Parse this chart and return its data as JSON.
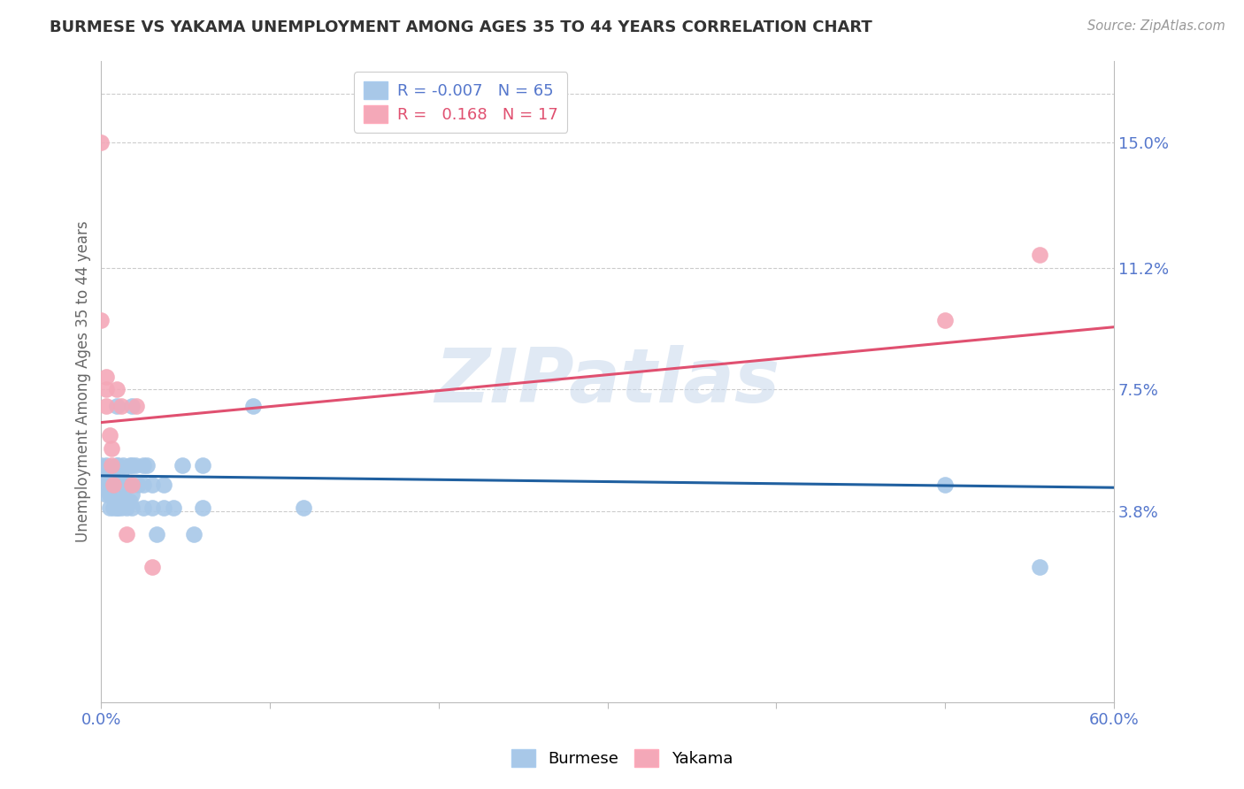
{
  "title": "BURMESE VS YAKAMA UNEMPLOYMENT AMONG AGES 35 TO 44 YEARS CORRELATION CHART",
  "source": "Source: ZipAtlas.com",
  "ylabel": "Unemployment Among Ages 35 to 44 years",
  "xlim": [
    0.0,
    0.6
  ],
  "ylim": [
    -0.02,
    0.175
  ],
  "y_tick_vals_right": [
    0.15,
    0.112,
    0.075,
    0.038
  ],
  "y_tick_labels_right": [
    "15.0%",
    "11.2%",
    "7.5%",
    "3.8%"
  ],
  "burmese_color": "#A8C8E8",
  "yakama_color": "#F4A8B8",
  "burmese_line_color": "#2060A0",
  "yakama_line_color": "#E05070",
  "burmese_R": "-0.007",
  "burmese_N": "65",
  "yakama_R": "0.168",
  "yakama_N": "17",
  "watermark": "ZIPatlas",
  "burmese_scatter": [
    [
      0.0,
      0.05
    ],
    [
      0.0,
      0.046
    ],
    [
      0.0,
      0.052
    ],
    [
      0.0,
      0.048
    ],
    [
      0.003,
      0.05
    ],
    [
      0.003,
      0.048
    ],
    [
      0.003,
      0.043
    ],
    [
      0.003,
      0.052
    ],
    [
      0.005,
      0.05
    ],
    [
      0.005,
      0.046
    ],
    [
      0.005,
      0.043
    ],
    [
      0.005,
      0.043
    ],
    [
      0.005,
      0.039
    ],
    [
      0.006,
      0.046
    ],
    [
      0.007,
      0.039
    ],
    [
      0.007,
      0.043
    ],
    [
      0.007,
      0.043
    ],
    [
      0.007,
      0.048
    ],
    [
      0.009,
      0.039
    ],
    [
      0.009,
      0.041
    ],
    [
      0.009,
      0.046
    ],
    [
      0.009,
      0.052
    ],
    [
      0.009,
      0.07
    ],
    [
      0.01,
      0.039
    ],
    [
      0.01,
      0.041
    ],
    [
      0.01,
      0.046
    ],
    [
      0.01,
      0.052
    ],
    [
      0.012,
      0.039
    ],
    [
      0.012,
      0.043
    ],
    [
      0.012,
      0.046
    ],
    [
      0.012,
      0.05
    ],
    [
      0.013,
      0.043
    ],
    [
      0.013,
      0.046
    ],
    [
      0.013,
      0.046
    ],
    [
      0.013,
      0.052
    ],
    [
      0.015,
      0.039
    ],
    [
      0.015,
      0.041
    ],
    [
      0.015,
      0.046
    ],
    [
      0.017,
      0.041
    ],
    [
      0.017,
      0.046
    ],
    [
      0.017,
      0.052
    ],
    [
      0.018,
      0.039
    ],
    [
      0.018,
      0.043
    ],
    [
      0.018,
      0.052
    ],
    [
      0.018,
      0.07
    ],
    [
      0.02,
      0.052
    ],
    [
      0.022,
      0.046
    ],
    [
      0.025,
      0.039
    ],
    [
      0.025,
      0.046
    ],
    [
      0.025,
      0.052
    ],
    [
      0.027,
      0.052
    ],
    [
      0.03,
      0.039
    ],
    [
      0.03,
      0.046
    ],
    [
      0.033,
      0.031
    ],
    [
      0.037,
      0.046
    ],
    [
      0.037,
      0.039
    ],
    [
      0.043,
      0.039
    ],
    [
      0.048,
      0.052
    ],
    [
      0.055,
      0.031
    ],
    [
      0.06,
      0.052
    ],
    [
      0.06,
      0.039
    ],
    [
      0.09,
      0.07
    ],
    [
      0.12,
      0.039
    ],
    [
      0.5,
      0.046
    ],
    [
      0.556,
      0.021
    ]
  ],
  "yakama_scatter": [
    [
      0.0,
      0.15
    ],
    [
      0.0,
      0.096
    ],
    [
      0.003,
      0.079
    ],
    [
      0.003,
      0.075
    ],
    [
      0.003,
      0.07
    ],
    [
      0.005,
      0.061
    ],
    [
      0.006,
      0.057
    ],
    [
      0.006,
      0.052
    ],
    [
      0.007,
      0.046
    ],
    [
      0.009,
      0.075
    ],
    [
      0.012,
      0.07
    ],
    [
      0.015,
      0.031
    ],
    [
      0.018,
      0.046
    ],
    [
      0.021,
      0.07
    ],
    [
      0.03,
      0.021
    ],
    [
      0.5,
      0.096
    ],
    [
      0.556,
      0.116
    ]
  ],
  "burmese_trendline": [
    [
      0.0,
      0.0488
    ],
    [
      0.6,
      0.0452
    ]
  ],
  "yakama_trendline": [
    [
      0.0,
      0.065
    ],
    [
      0.6,
      0.094
    ]
  ]
}
